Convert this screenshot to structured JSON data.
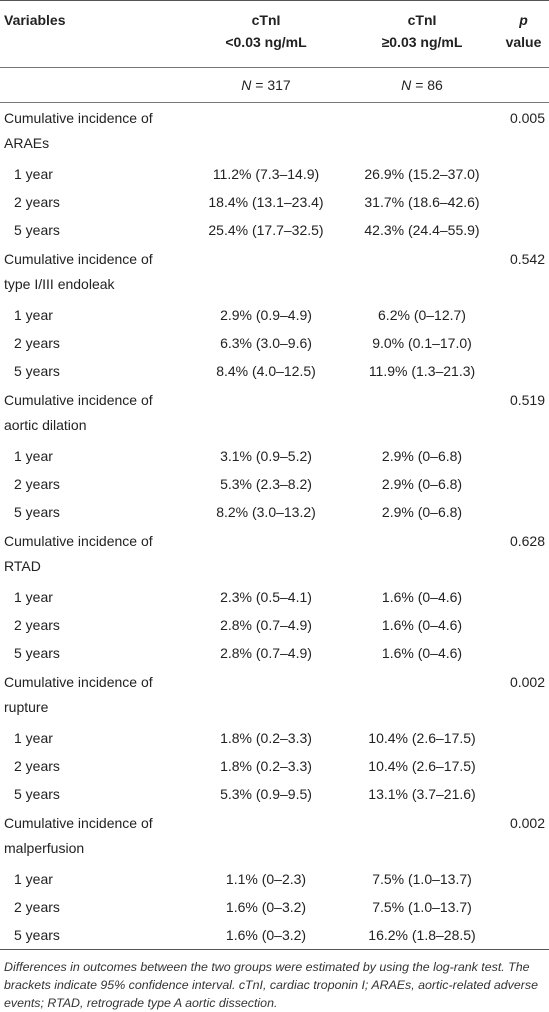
{
  "table": {
    "header": [
      [
        "Variables"
      ],
      [
        "cTnI",
        "<0.03 ng/mL"
      ],
      [
        "cTnI",
        "≥0.03 ng/mL"
      ],
      [
        "p",
        "value"
      ]
    ],
    "n_row": [
      {
        "symbol": "N",
        "text": "= 317"
      },
      {
        "symbol": "N",
        "text": "= 86"
      }
    ],
    "sections": [
      {
        "title": "Cumulative incidence of ARAEs",
        "p": "0.005",
        "rows": [
          [
            "1 year",
            "11.2% (7.3–14.9)",
            "26.9% (15.2–37.0)"
          ],
          [
            "2 years",
            "18.4% (13.1–23.4)",
            "31.7% (18.6–42.6)"
          ],
          [
            "5 years",
            "25.4% (17.7–32.5)",
            "42.3% (24.4–55.9)"
          ]
        ]
      },
      {
        "title": "Cumulative incidence of type I/III endoleak",
        "p": "0.542",
        "rows": [
          [
            "1 year",
            "2.9% (0.9–4.9)",
            "6.2% (0–12.7)"
          ],
          [
            "2 years",
            "6.3% (3.0–9.6)",
            "9.0% (0.1–17.0)"
          ],
          [
            "5 years",
            "8.4% (4.0–12.5)",
            "11.9% (1.3–21.3)"
          ]
        ]
      },
      {
        "title": "Cumulative incidence of aortic dilation",
        "p": "0.519",
        "rows": [
          [
            "1 year",
            "3.1% (0.9–5.2)",
            "2.9% (0–6.8)"
          ],
          [
            "2 years",
            "5.3% (2.3–8.2)",
            "2.9% (0–6.8)"
          ],
          [
            "5 years",
            "8.2% (3.0–13.2)",
            "2.9% (0–6.8)"
          ]
        ]
      },
      {
        "title": "Cumulative incidence of RTAD",
        "p": "0.628",
        "rows": [
          [
            "1 year",
            "2.3% (0.5–4.1)",
            "1.6% (0–4.6)"
          ],
          [
            "2 years",
            "2.8% (0.7–4.9)",
            "1.6% (0–4.6)"
          ],
          [
            "5 years",
            "2.8% (0.7–4.9)",
            "1.6% (0–4.6)"
          ]
        ]
      },
      {
        "title": "Cumulative incidence of rupture",
        "p": "0.002",
        "rows": [
          [
            "1 year",
            "1.8% (0.2–3.3)",
            "10.4% (2.6–17.5)"
          ],
          [
            "2 years",
            "1.8% (0.2–3.3)",
            "10.4% (2.6–17.5)"
          ],
          [
            "5 years",
            "5.3% (0.9–9.5)",
            "13.1% (3.7–21.6)"
          ]
        ]
      },
      {
        "title": "Cumulative incidence of malperfusion",
        "p": "0.002",
        "rows": [
          [
            "1 year",
            "1.1% (0–2.3)",
            "7.5% (1.0–13.7)"
          ],
          [
            "2 years",
            "1.6% (0–3.2)",
            "7.5% (1.0–13.7)"
          ],
          [
            "5 years",
            "1.6% (0–3.2)",
            "16.2% (1.8–28.5)"
          ]
        ]
      }
    ]
  },
  "footnote": "Differences in outcomes between the two groups were estimated by using the log-rank test. The brackets indicate 95% confidence interval. cTnI, cardiac troponin I; ARAEs, aortic-related adverse events; RTAD, retrograde type A aortic dissection."
}
